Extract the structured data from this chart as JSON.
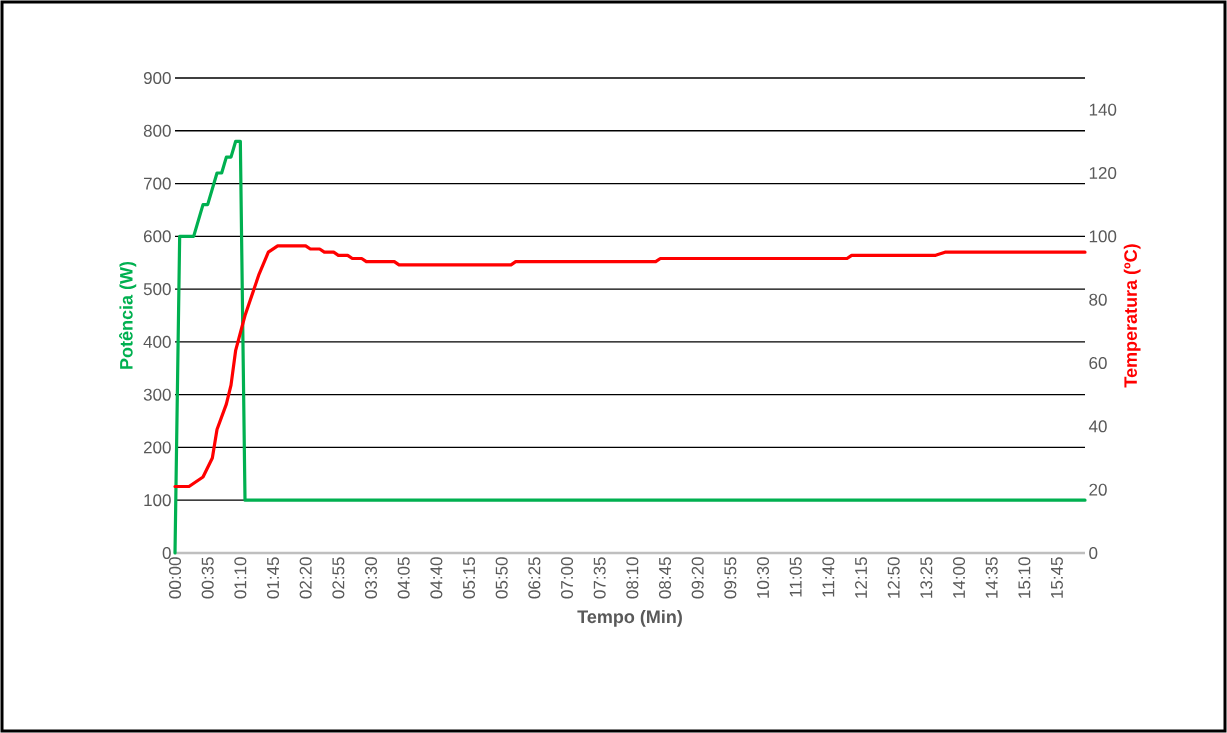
{
  "chart_data": {
    "type": "line",
    "xlabel": "Tempo (Min)",
    "ylabel": "Potência (W)",
    "y2label": "Temperatura (ºC)",
    "xlim": [
      0,
      975
    ],
    "xticks": [
      {
        "value": 0,
        "label": "00:00"
      },
      {
        "value": 35,
        "label": "00:35"
      },
      {
        "value": 70,
        "label": "01:10"
      },
      {
        "value": 105,
        "label": "01:45"
      },
      {
        "value": 140,
        "label": "02:20"
      },
      {
        "value": 175,
        "label": "02:55"
      },
      {
        "value": 210,
        "label": "03:30"
      },
      {
        "value": 245,
        "label": "04:05"
      },
      {
        "value": 280,
        "label": "04:40"
      },
      {
        "value": 315,
        "label": "05:15"
      },
      {
        "value": 350,
        "label": "05:50"
      },
      {
        "value": 385,
        "label": "06:25"
      },
      {
        "value": 420,
        "label": "07:00"
      },
      {
        "value": 455,
        "label": "07:35"
      },
      {
        "value": 490,
        "label": "08:10"
      },
      {
        "value": 525,
        "label": "08:45"
      },
      {
        "value": 560,
        "label": "09:20"
      },
      {
        "value": 595,
        "label": "09:55"
      },
      {
        "value": 630,
        "label": "10:30"
      },
      {
        "value": 665,
        "label": "11:05"
      },
      {
        "value": 700,
        "label": "11:40"
      },
      {
        "value": 735,
        "label": "12:15"
      },
      {
        "value": 770,
        "label": "12:50"
      },
      {
        "value": 805,
        "label": "13:25"
      },
      {
        "value": 840,
        "label": "14:00"
      },
      {
        "value": 875,
        "label": "14:35"
      },
      {
        "value": 910,
        "label": "15:10"
      },
      {
        "value": 945,
        "label": "15:45"
      }
    ],
    "ylim": [
      0,
      900
    ],
    "yticks": [
      0,
      100,
      200,
      300,
      400,
      500,
      600,
      700,
      800,
      900
    ],
    "y2lim": [
      0,
      150
    ],
    "y2ticks": [
      0,
      20,
      40,
      60,
      80,
      100,
      120,
      140
    ],
    "grid": "y",
    "series": [
      {
        "color": "#00b050",
        "x": [
          0,
          5,
          20,
          30,
          35,
          45,
          50,
          55,
          60,
          65,
          70,
          75,
          975
        ],
        "values": [
          0,
          600,
          600,
          660,
          660,
          720,
          720,
          750,
          750,
          780,
          780,
          100,
          100
        ]
      },
      {
        "color": "#ff0000",
        "axis": "y2",
        "x": [
          0,
          15,
          30,
          40,
          45,
          55,
          60,
          65,
          75,
          90,
          100,
          110,
          140,
          145,
          155,
          160,
          170,
          175,
          185,
          190,
          200,
          205,
          235,
          240,
          360,
          365,
          515,
          520,
          720,
          725,
          815,
          825,
          975
        ],
        "values": [
          21,
          21,
          24,
          30,
          39,
          47,
          53,
          64,
          75,
          88,
          95,
          97,
          97,
          96,
          96,
          95,
          95,
          94,
          94,
          93,
          93,
          92,
          92,
          91,
          91,
          92,
          92,
          93,
          93,
          94,
          94,
          95,
          95
        ]
      }
    ]
  }
}
